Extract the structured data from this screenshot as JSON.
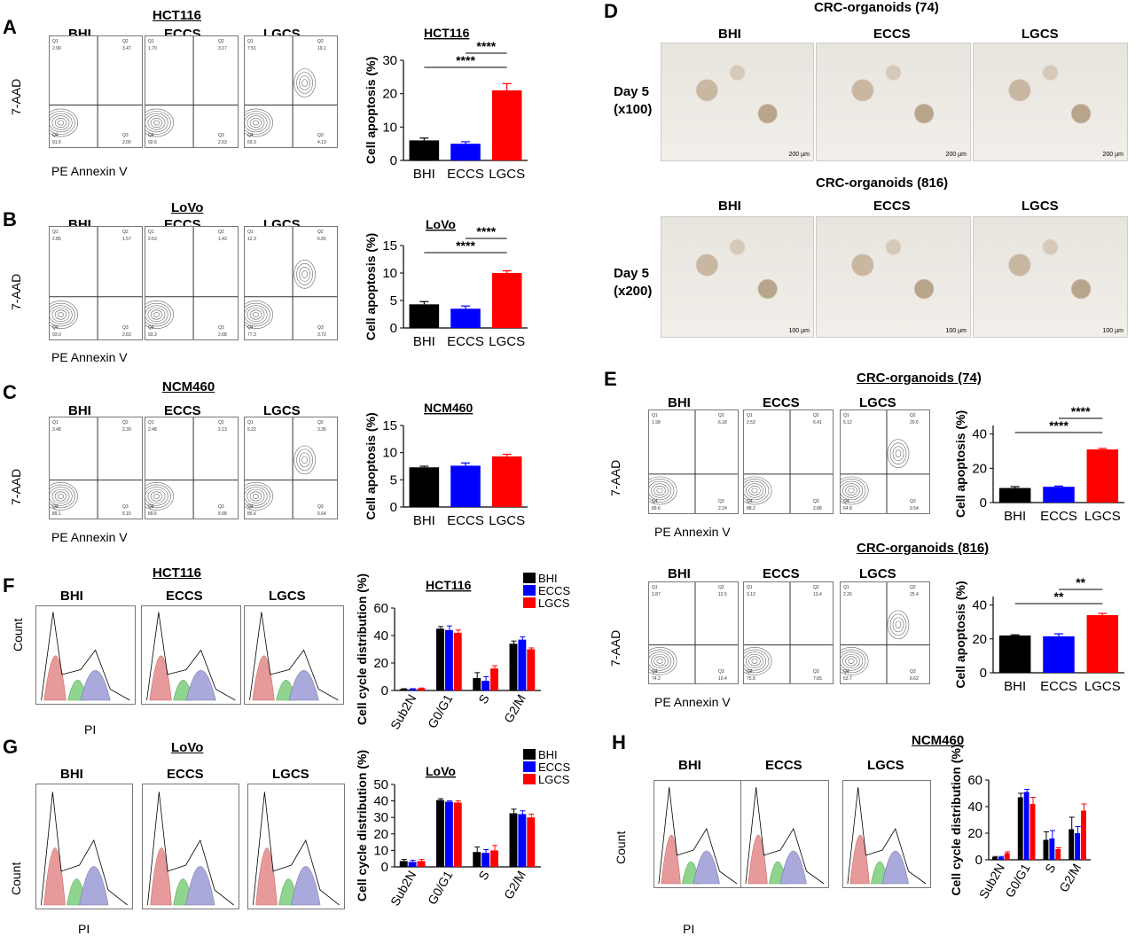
{
  "panels": {
    "A": "A",
    "B": "B",
    "C": "C",
    "D": "D",
    "E": "E",
    "F": "F",
    "G": "G",
    "H": "H"
  },
  "groups": {
    "bhi": "BHI",
    "eccs": "ECCS",
    "lgcs": "LGCS"
  },
  "axes": {
    "pe": "PE Annexin V",
    "aad": "7-AAD",
    "pi": "PI",
    "count": "Count",
    "day5a": "Day 5",
    "x100": "(x100)",
    "x200": "(x200)",
    "um200": "200 µm",
    "um100": "100 µm"
  },
  "titles": {
    "hct116": "HCT116",
    "lovo": "LoVo",
    "ncm460": "NCM460",
    "org74": "CRC-organoids (74)",
    "org816": "CRC-organoids (816)"
  },
  "flow": {
    "A": [
      {
        "q1": "2.99",
        "q2": "3.47",
        "q3": "2.00",
        "q4": "91.5"
      },
      {
        "q1": "1.70",
        "q2": "3.17",
        "q3": "2.53",
        "q4": "92.6"
      },
      {
        "q1": "7.51",
        "q2": "19.1",
        "q3": "4.13",
        "q4": "69.3"
      }
    ],
    "B": [
      {
        "q1": "2.85",
        "q2": "1.57",
        "q3": "2.63",
        "q4": "93.0"
      },
      {
        "q1": "2.63",
        "q2": "1.43",
        "q3": "2.68",
        "q4": "93.3"
      },
      {
        "q1": "12.3",
        "q2": "6.65",
        "q3": "3.72",
        "q4": "77.3"
      }
    ],
    "C": [
      {
        "q1": "3.48",
        "q2": "2.39",
        "q3": "5.15",
        "q4": "89.1"
      },
      {
        "q1": "2.48",
        "q2": "2.13",
        "q3": "5.68",
        "q4": "89.5"
      },
      {
        "q1": "5.22",
        "q2": "3.35",
        "q3": "5.64",
        "q4": "85.6"
      }
    ],
    "E1": [
      {
        "q1": "1.98",
        "q2": "6.18",
        "q3": "2.24",
        "q4": "89.6"
      },
      {
        "q1": "2.53",
        "q2": "6.41",
        "q3": "2.88",
        "q4": "88.2"
      },
      {
        "q1": "5.12",
        "q2": "20.6",
        "q3": "9.54",
        "q4": "64.8"
      }
    ],
    "E2": [
      {
        "q1": "2.87",
        "q2": "12.5",
        "q3": "10.4",
        "q4": "74.2"
      },
      {
        "q1": "3.13",
        "q2": "13.4",
        "q3": "7.65",
        "q4": "75.8"
      },
      {
        "q1": "2.26",
        "q2": "25.4",
        "q3": "8.62",
        "q4": "63.7"
      }
    ]
  },
  "chart_data": [
    {
      "id": "A",
      "type": "bar",
      "title": "HCT116",
      "ylabel": "Cell apoptosis (%)",
      "categories": [
        "BHI",
        "ECCS",
        "LGCS"
      ],
      "values": [
        6,
        5,
        21
      ],
      "errors": [
        0.7,
        0.6,
        2
      ],
      "ylim": [
        0,
        30
      ],
      "yticks": [
        0,
        10,
        20,
        30
      ],
      "colors": [
        "#000000",
        "#0000ff",
        "#ff0000"
      ],
      "sig": [
        {
          "from": 0,
          "to": 2,
          "label": "****"
        },
        {
          "from": 1,
          "to": 2,
          "label": "****"
        }
      ]
    },
    {
      "id": "B",
      "type": "bar",
      "title": "LoVo",
      "ylabel": "Cell apoptosis (%)",
      "categories": [
        "BHI",
        "ECCS",
        "LGCS"
      ],
      "values": [
        4.3,
        3.5,
        10
      ],
      "errors": [
        0.5,
        0.5,
        0.4
      ],
      "ylim": [
        0,
        15
      ],
      "yticks": [
        0,
        5,
        10,
        15
      ],
      "colors": [
        "#000000",
        "#0000ff",
        "#ff0000"
      ],
      "sig": [
        {
          "from": 0,
          "to": 2,
          "label": "****"
        },
        {
          "from": 1,
          "to": 2,
          "label": "****"
        }
      ]
    },
    {
      "id": "C",
      "type": "bar",
      "title": "NCM460",
      "ylabel": "Cell apoptosis (%)",
      "categories": [
        "BHI",
        "ECCS",
        "LGCS"
      ],
      "values": [
        7.3,
        7.6,
        9.3
      ],
      "errors": [
        0.2,
        0.5,
        0.4
      ],
      "ylim": [
        0,
        15
      ],
      "yticks": [
        0,
        5,
        10,
        15
      ],
      "colors": [
        "#000000",
        "#0000ff",
        "#ff0000"
      ],
      "sig": []
    },
    {
      "id": "E1",
      "type": "bar",
      "title": "",
      "ylabel": "Cell apoptosis (%)",
      "categories": [
        "BHI",
        "ECCS",
        "LGCS"
      ],
      "values": [
        8.5,
        9.2,
        31
      ],
      "errors": [
        0.8,
        0.4,
        0.6
      ],
      "ylim": [
        0,
        45
      ],
      "yticks": [
        0,
        20,
        40
      ],
      "colors": [
        "#000000",
        "#0000ff",
        "#ff0000"
      ],
      "sig": [
        {
          "from": 0,
          "to": 2,
          "label": "****"
        },
        {
          "from": 1,
          "to": 2,
          "label": "****"
        }
      ]
    },
    {
      "id": "E2",
      "type": "bar",
      "title": "",
      "ylabel": "Cell apoptosis (%)",
      "categories": [
        "BHI",
        "ECCS",
        "LGCS"
      ],
      "values": [
        22,
        21.5,
        34
      ],
      "errors": [
        0.4,
        1.5,
        1
      ],
      "ylim": [
        0,
        45
      ],
      "yticks": [
        0,
        20,
        40
      ],
      "colors": [
        "#000000",
        "#0000ff",
        "#ff0000"
      ],
      "sig": [
        {
          "from": 0,
          "to": 2,
          "label": "**"
        },
        {
          "from": 1,
          "to": 2,
          "label": "**"
        }
      ]
    },
    {
      "id": "F",
      "type": "bar",
      "title": "HCT116",
      "ylabel": "Cell cycle distribution (%)",
      "categories": [
        "Sub2N",
        "G0/G1",
        "S",
        "G2/M"
      ],
      "series": [
        {
          "name": "BHI",
          "color": "#000000",
          "values": [
            1,
            45,
            9,
            34
          ],
          "errors": [
            0.3,
            1.5,
            4,
            2
          ]
        },
        {
          "name": "ECCS",
          "color": "#0000ff",
          "values": [
            1,
            44,
            7,
            37
          ],
          "errors": [
            0.3,
            3,
            3,
            2
          ]
        },
        {
          "name": "LGCS",
          "color": "#ff0000",
          "values": [
            1.5,
            42,
            16,
            30
          ],
          "errors": [
            0.3,
            2,
            2,
            1
          ]
        }
      ],
      "ylim": [
        0,
        60
      ],
      "yticks": [
        0,
        20,
        40,
        60
      ]
    },
    {
      "id": "G",
      "type": "bar",
      "title": "LoVo",
      "ylabel": "Cell cycle distribution (%)",
      "categories": [
        "Sub2N",
        "G0/G1",
        "S",
        "G2/M"
      ],
      "series": [
        {
          "name": "BHI",
          "color": "#000000",
          "values": [
            3.5,
            40.5,
            9,
            32.5
          ],
          "errors": [
            1,
            0.8,
            3,
            2.5
          ]
        },
        {
          "name": "ECCS",
          "color": "#0000ff",
          "values": [
            3,
            39.5,
            8.5,
            32
          ],
          "errors": [
            1,
            0.5,
            2,
            2
          ]
        },
        {
          "name": "LGCS",
          "color": "#ff0000",
          "values": [
            3.5,
            39,
            10,
            30
          ],
          "errors": [
            1,
            1,
            3,
            2
          ]
        }
      ],
      "ylim": [
        0,
        50
      ],
      "yticks": [
        0,
        10,
        20,
        30,
        40,
        50
      ]
    },
    {
      "id": "H",
      "type": "bar",
      "title": "NCM460",
      "ylabel": "Cell cycle distribution (%)",
      "categories": [
        "Sub2N",
        "G0/G1",
        "S",
        "G2/M"
      ],
      "series": [
        {
          "name": "BHI",
          "color": "#000000",
          "values": [
            2,
            47,
            15,
            23
          ],
          "errors": [
            0.5,
            3,
            6,
            9
          ]
        },
        {
          "name": "ECCS",
          "color": "#0000ff",
          "values": [
            2,
            51,
            16,
            20
          ],
          "errors": [
            0.5,
            2,
            6,
            5
          ]
        },
        {
          "name": "LGCS",
          "color": "#ff0000",
          "values": [
            5,
            42,
            8,
            37
          ],
          "errors": [
            1,
            5,
            1,
            5
          ]
        }
      ],
      "ylim": [
        0,
        60
      ],
      "yticks": [
        0,
        20,
        40,
        60
      ]
    }
  ]
}
